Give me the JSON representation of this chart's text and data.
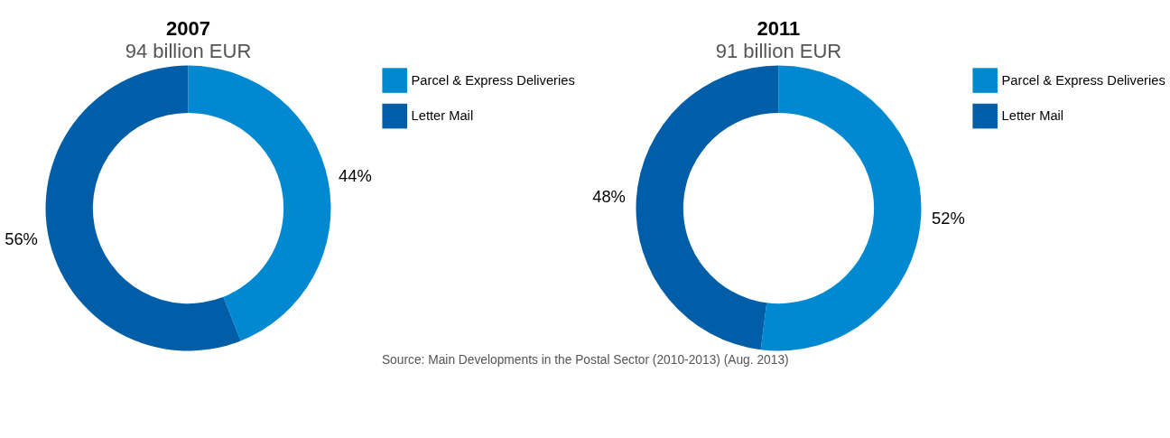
{
  "chart_data": [
    {
      "type": "donut",
      "title": "2007",
      "subtitle": "94 billion EUR",
      "categories": [
        "Parcel & Express Deliveries",
        "Letter Mail"
      ],
      "values": [
        44,
        56
      ],
      "colors": [
        "#0089d1",
        "#005ea8"
      ],
      "value_labels": [
        "44%",
        "56%"
      ],
      "legend": "right",
      "annotations": [
        "Source: Main Developments in the Postal Sector (2010-2013) (Aug. 2013)"
      ]
    },
    {
      "type": "donut",
      "title": "2011",
      "subtitle": "91 billion EUR",
      "categories": [
        "Parcel & Express Deliveries",
        "Letter Mail"
      ],
      "values": [
        52,
        48
      ],
      "colors": [
        "#0089d1",
        "#005ea8"
      ],
      "value_labels": [
        "52%",
        "48%"
      ],
      "legend": "right"
    }
  ]
}
